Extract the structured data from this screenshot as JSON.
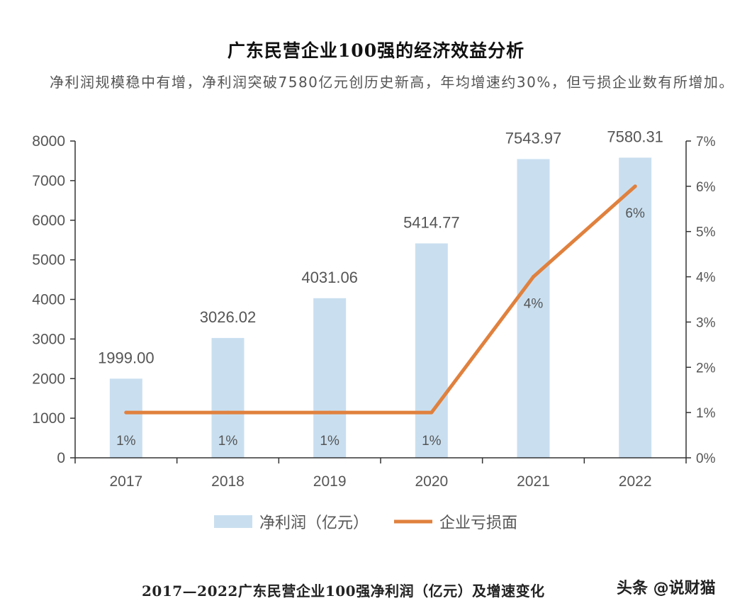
{
  "article": {
    "title": "广东民营企业100强的经济效益分析",
    "intro": "净利润规模稳中有增，净利润突破7580亿元创历史新高，年均增速约30%，但亏损企业数有所增加。",
    "caption": "2017—2022广东民营企业100强净利润（亿元）及增速变化",
    "watermark": "头条 @说财猫"
  },
  "colors": {
    "bar": "#c9dff0",
    "line": "#e0813e",
    "axis": "#333333",
    "text": "#555555"
  },
  "chart_data": {
    "type": "bar",
    "categories": [
      "2017",
      "2018",
      "2019",
      "2020",
      "2021",
      "2022"
    ],
    "series": [
      {
        "name": "净利润（亿元）",
        "type": "bar",
        "axis": "left",
        "values": [
          1999.0,
          3026.02,
          4031.06,
          5414.77,
          7543.97,
          7580.31
        ],
        "labels": [
          "1999.00",
          "3026.02",
          "4031.06",
          "5414.77",
          "7543.97",
          "7580.31"
        ]
      },
      {
        "name": "企业亏损面",
        "type": "line",
        "axis": "right",
        "values": [
          1,
          1,
          1,
          1,
          4,
          6
        ],
        "labels": [
          "1%",
          "1%",
          "1%",
          "1%",
          "4%",
          "6%"
        ]
      }
    ],
    "ylim_left": [
      0,
      8000
    ],
    "yticks_left": [
      "0",
      "1000",
      "2000",
      "3000",
      "4000",
      "5000",
      "6000",
      "7000",
      "8000"
    ],
    "ylim_right": [
      0,
      7
    ],
    "yticks_right": [
      "0%",
      "1%",
      "2%",
      "3%",
      "4%",
      "5%",
      "6%",
      "7%"
    ],
    "legend": [
      "净利润（亿元）",
      "企业亏损面"
    ],
    "legend_position": "bottom"
  }
}
